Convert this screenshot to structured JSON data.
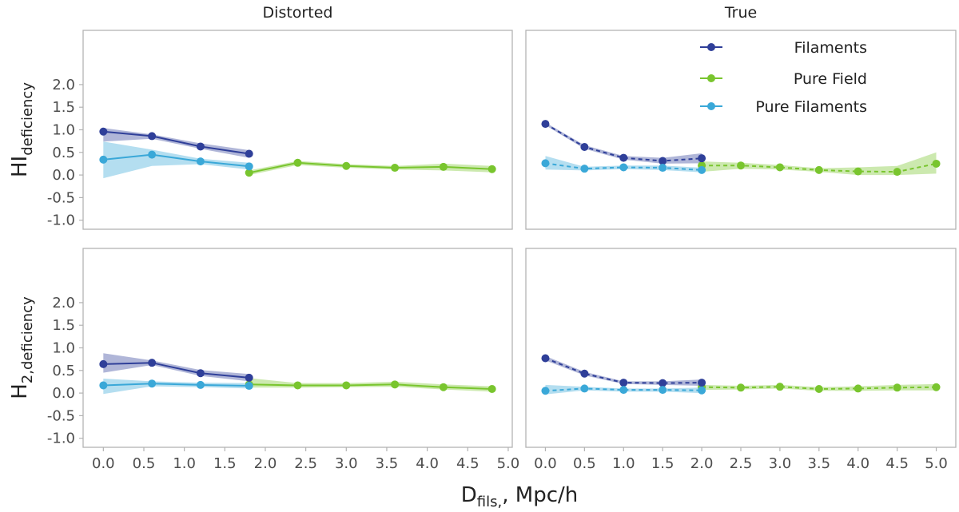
{
  "chart_data": {
    "type": "line",
    "figure": {
      "xlabel_main": "D",
      "xlabel_sub": "fils,",
      "xlabel_rest": ", Mpc/h"
    },
    "legend": {
      "position": "top-right",
      "entries": [
        "Filaments",
        "Pure Field",
        "Pure Filaments"
      ]
    },
    "colors": {
      "Filaments": "#2f3f99",
      "Pure Field": "#79c52e",
      "Pure Filaments": "#3aa8d8",
      "frame": "#b3b3b3",
      "text": "#222222",
      "tick_text": "#4d4d4d"
    },
    "columns": [
      {
        "title": "Distorted",
        "xlim": [
          -0.25,
          5.05
        ],
        "xticks": [
          0.0,
          0.5,
          1.0,
          1.5,
          2.0,
          2.5,
          3.0,
          3.5,
          4.0,
          4.5,
          5.0
        ],
        "xtick_labels": [
          "0.0",
          "0.5",
          "1.0",
          "1.5",
          "2.0",
          "2.5",
          "3.0",
          "3.5",
          "4.0",
          "4.5",
          "5.0"
        ]
      },
      {
        "title": "True",
        "xlim": [
          -0.25,
          5.25
        ],
        "xticks": [
          0.0,
          0.5,
          1.0,
          1.5,
          2.0,
          2.5,
          3.0,
          3.5,
          4.0,
          4.5,
          5.0
        ],
        "xtick_labels": [
          "0.0",
          "0.5",
          "1.0",
          "1.5",
          "2.0",
          "2.5",
          "3.0",
          "3.5",
          "4.0",
          "4.5",
          "5.0"
        ]
      }
    ],
    "rows": [
      {
        "ylabel_main": "HI",
        "ylabel_sub": "deficiency",
        "ylim": [
          -1.2,
          3.2
        ],
        "yticks": [
          -1.0,
          -0.5,
          0.0,
          0.5,
          1.0,
          1.5,
          2.0
        ],
        "ytick_labels": [
          "-1.0",
          "-0.5",
          "0.0",
          "0.5",
          "1.0",
          "1.5",
          "2.0"
        ]
      },
      {
        "ylabel_main": "H",
        "ylabel_sub": "2,deficiency",
        "ylim": [
          -1.2,
          3.2
        ],
        "yticks": [
          -1.0,
          -0.5,
          0.0,
          0.5,
          1.0,
          1.5,
          2.0
        ],
        "ytick_labels": [
          "-1.0",
          "-0.5",
          "0.0",
          "0.5",
          "1.0",
          "1.5",
          "2.0"
        ]
      }
    ],
    "panels": [
      {
        "row": 0,
        "col": 0,
        "linestyle": "solid",
        "series": [
          {
            "name": "Filaments",
            "x": [
              0.0,
              0.6,
              1.2,
              1.8
            ],
            "y": [
              0.96,
              0.86,
              0.63,
              0.47
            ],
            "lower": [
              0.74,
              0.8,
              0.58,
              0.38
            ],
            "upper": [
              1.04,
              0.9,
              0.7,
              0.55
            ]
          },
          {
            "name": "Pure Filaments",
            "x": [
              0.0,
              0.6,
              1.2,
              1.8
            ],
            "y": [
              0.34,
              0.45,
              0.3,
              0.19
            ],
            "lower": [
              -0.07,
              0.2,
              0.24,
              0.12
            ],
            "upper": [
              0.74,
              0.56,
              0.36,
              0.27
            ]
          },
          {
            "name": "Pure Field",
            "x": [
              1.8,
              2.4,
              3.0,
              3.6,
              4.2,
              4.8
            ],
            "y": [
              0.05,
              0.27,
              0.2,
              0.16,
              0.18,
              0.13
            ],
            "lower": [
              0.0,
              0.22,
              0.16,
              0.12,
              0.1,
              0.06
            ],
            "upper": [
              0.1,
              0.31,
              0.24,
              0.2,
              0.25,
              0.2
            ]
          }
        ]
      },
      {
        "row": 0,
        "col": 1,
        "linestyle": "dashed",
        "series": [
          {
            "name": "Filaments",
            "x": [
              0.0,
              0.5,
              1.0,
              1.5,
              2.0
            ],
            "y": [
              1.13,
              0.62,
              0.38,
              0.31,
              0.37
            ],
            "lower": [
              1.1,
              0.58,
              0.34,
              0.25,
              0.26
            ],
            "upper": [
              1.16,
              0.66,
              0.42,
              0.38,
              0.48
            ]
          },
          {
            "name": "Pure Filaments",
            "x": [
              0.0,
              0.5,
              1.0,
              1.5,
              2.0
            ],
            "y": [
              0.26,
              0.14,
              0.17,
              0.16,
              0.11
            ],
            "lower": [
              0.12,
              0.1,
              0.13,
              0.11,
              0.06
            ],
            "upper": [
              0.42,
              0.18,
              0.21,
              0.21,
              0.16
            ]
          },
          {
            "name": "Pure Field",
            "x": [
              2.0,
              2.5,
              3.0,
              3.5,
              4.0,
              4.5,
              5.0
            ],
            "y": [
              0.21,
              0.21,
              0.17,
              0.11,
              0.08,
              0.07,
              0.25
            ],
            "lower": [
              0.07,
              0.14,
              0.12,
              0.07,
              0.0,
              0.0,
              0.03
            ],
            "upper": [
              0.3,
              0.27,
              0.22,
              0.15,
              0.17,
              0.2,
              0.5
            ]
          }
        ]
      },
      {
        "row": 1,
        "col": 0,
        "linestyle": "solid",
        "series": [
          {
            "name": "Filaments",
            "x": [
              0.0,
              0.6,
              1.2,
              1.8
            ],
            "y": [
              0.64,
              0.67,
              0.44,
              0.34
            ],
            "lower": [
              0.45,
              0.62,
              0.38,
              0.26
            ],
            "upper": [
              0.88,
              0.72,
              0.51,
              0.42
            ]
          },
          {
            "name": "Pure Filaments",
            "x": [
              0.0,
              0.6,
              1.2,
              1.8
            ],
            "y": [
              0.17,
              0.21,
              0.18,
              0.16
            ],
            "lower": [
              -0.02,
              0.15,
              0.13,
              0.1
            ],
            "upper": [
              0.32,
              0.26,
              0.23,
              0.22
            ]
          },
          {
            "name": "Pure Field",
            "x": [
              1.8,
              2.4,
              3.0,
              3.6,
              4.2,
              4.8
            ],
            "y": [
              0.19,
              0.17,
              0.17,
              0.19,
              0.13,
              0.09
            ],
            "lower": [
              0.12,
              0.12,
              0.13,
              0.14,
              0.08,
              0.03
            ],
            "upper": [
              0.33,
              0.22,
              0.22,
              0.25,
              0.19,
              0.15
            ]
          }
        ]
      },
      {
        "row": 1,
        "col": 1,
        "linestyle": "dashed",
        "series": [
          {
            "name": "Filaments",
            "x": [
              0.0,
              0.5,
              1.0,
              1.5,
              2.0
            ],
            "y": [
              0.77,
              0.43,
              0.23,
              0.22,
              0.23
            ],
            "lower": [
              0.72,
              0.39,
              0.2,
              0.18,
              0.16
            ],
            "upper": [
              0.82,
              0.47,
              0.26,
              0.26,
              0.3
            ]
          },
          {
            "name": "Pure Filaments",
            "x": [
              0.0,
              0.5,
              1.0,
              1.5,
              2.0
            ],
            "y": [
              0.05,
              0.1,
              0.07,
              0.07,
              0.06
            ],
            "lower": [
              -0.03,
              0.06,
              0.03,
              0.03,
              0.0
            ],
            "upper": [
              0.18,
              0.14,
              0.1,
              0.1,
              0.12
            ]
          },
          {
            "name": "Pure Field",
            "x": [
              2.0,
              2.5,
              3.0,
              3.5,
              4.0,
              4.5,
              5.0
            ],
            "y": [
              0.13,
              0.12,
              0.14,
              0.09,
              0.1,
              0.12,
              0.13
            ],
            "lower": [
              0.07,
              0.08,
              0.1,
              0.05,
              0.05,
              0.06,
              0.06
            ],
            "upper": [
              0.18,
              0.16,
              0.18,
              0.13,
              0.15,
              0.18,
              0.2
            ]
          }
        ]
      }
    ]
  }
}
